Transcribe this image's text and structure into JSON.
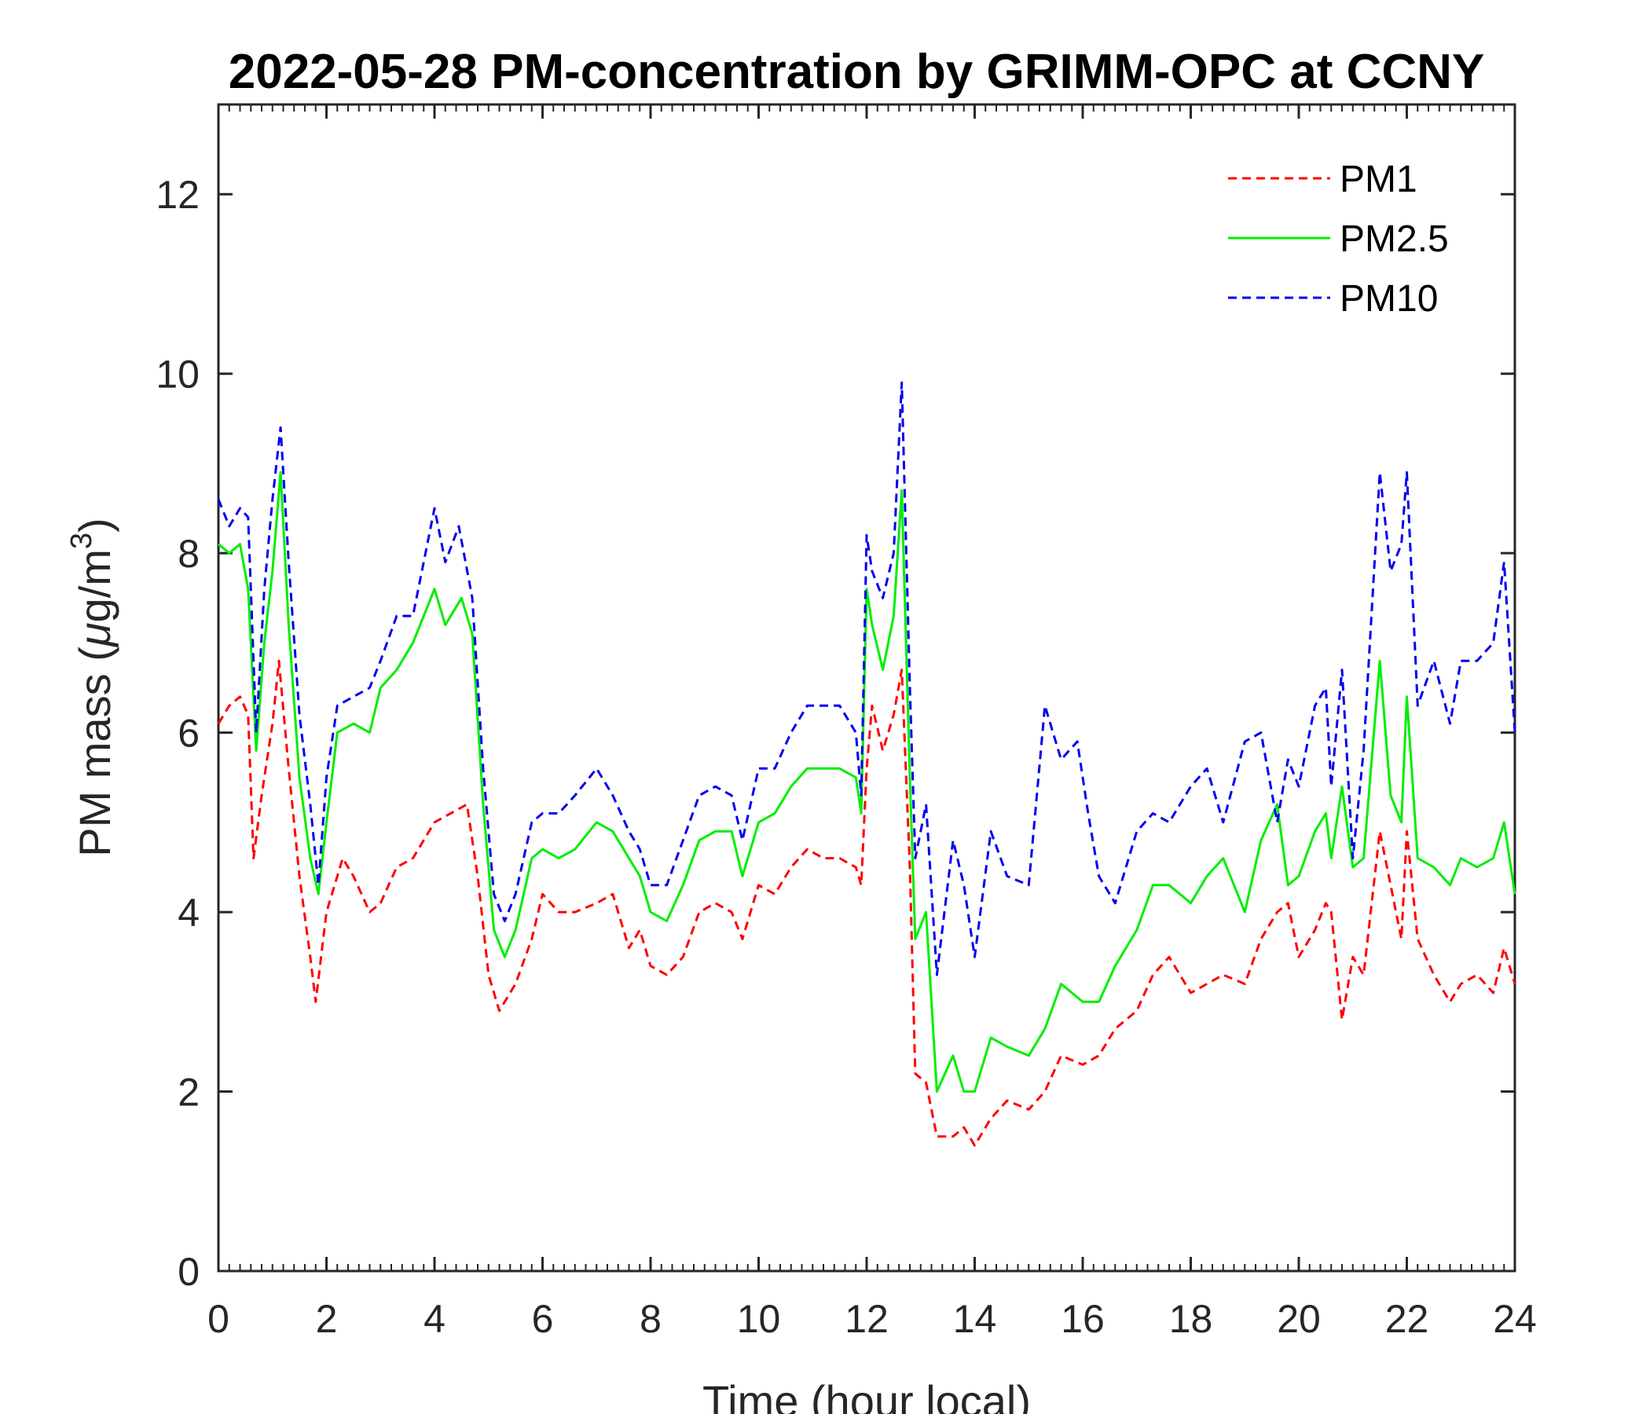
{
  "chart_data": {
    "type": "line",
    "title": "2022-05-28 PM-concentration by GRIMM-OPC at CCNY",
    "xlabel": "Time (hour local)",
    "ylabel_prefix": "PM mass (",
    "ylabel_mu": "μ",
    "ylabel_unit": "g/m",
    "ylabel_exp": "3",
    "ylabel_suffix": ")",
    "xlim": [
      0,
      24
    ],
    "ylim": [
      0,
      13
    ],
    "xticks": [
      0,
      2,
      4,
      6,
      8,
      10,
      12,
      14,
      16,
      18,
      20,
      22,
      24
    ],
    "yticks": [
      0,
      2,
      4,
      6,
      8,
      10,
      12
    ],
    "grid": false,
    "legend_position": "top-right",
    "series": [
      {
        "name": "PM1",
        "color": "#ff0000",
        "style": "dashed",
        "x": [
          0,
          0.2,
          0.4,
          0.55,
          0.65,
          0.8,
          1.0,
          1.12,
          1.3,
          1.5,
          1.7,
          1.8,
          2.0,
          2.2,
          2.3,
          2.5,
          2.8,
          3.0,
          3.3,
          3.6,
          4.0,
          4.3,
          4.6,
          4.8,
          5.0,
          5.2,
          5.5,
          5.8,
          6.0,
          6.3,
          6.6,
          7.0,
          7.3,
          7.6,
          7.8,
          8.0,
          8.3,
          8.6,
          8.9,
          9.2,
          9.5,
          9.7,
          10.0,
          10.3,
          10.6,
          10.9,
          11.2,
          11.5,
          11.8,
          11.9,
          12.0,
          12.1,
          12.3,
          12.5,
          12.65,
          12.8,
          12.9,
          13.1,
          13.3,
          13.6,
          13.8,
          14.0,
          14.3,
          14.6,
          15.0,
          15.3,
          15.6,
          16.0,
          16.3,
          16.6,
          17.0,
          17.3,
          17.6,
          18.0,
          18.3,
          18.6,
          19.0,
          19.3,
          19.6,
          19.8,
          20.0,
          20.3,
          20.5,
          20.6,
          20.8,
          21.0,
          21.2,
          21.5,
          21.7,
          21.9,
          22.0,
          22.2,
          22.5,
          22.8,
          23.0,
          23.3,
          23.6,
          23.8,
          24.0
        ],
        "y": [
          6.1,
          6.3,
          6.4,
          6.2,
          4.6,
          5.3,
          6.1,
          6.8,
          5.6,
          4.4,
          3.5,
          3.0,
          4.0,
          4.4,
          4.6,
          4.4,
          4.0,
          4.1,
          4.5,
          4.6,
          5.0,
          5.1,
          5.2,
          4.4,
          3.3,
          2.9,
          3.2,
          3.7,
          4.2,
          4.0,
          4.0,
          4.1,
          4.2,
          3.6,
          3.8,
          3.4,
          3.3,
          3.5,
          4.0,
          4.1,
          4.0,
          3.7,
          4.3,
          4.2,
          4.5,
          4.7,
          4.6,
          4.6,
          4.5,
          4.3,
          5.6,
          6.3,
          5.8,
          6.2,
          6.7,
          4.5,
          2.2,
          2.1,
          1.5,
          1.5,
          1.6,
          1.4,
          1.7,
          1.9,
          1.8,
          2.0,
          2.4,
          2.3,
          2.4,
          2.7,
          2.9,
          3.3,
          3.5,
          3.1,
          3.2,
          3.3,
          3.2,
          3.7,
          4.0,
          4.1,
          3.5,
          3.8,
          4.1,
          4.0,
          2.8,
          3.5,
          3.3,
          4.9,
          4.3,
          3.7,
          4.9,
          3.7,
          3.3,
          3.0,
          3.2,
          3.3,
          3.1,
          3.6,
          3.2
        ]
      },
      {
        "name": "PM2.5",
        "color": "#00ee00",
        "style": "solid",
        "x": [
          0,
          0.2,
          0.4,
          0.55,
          0.7,
          0.85,
          1.0,
          1.15,
          1.3,
          1.5,
          1.7,
          1.85,
          2.0,
          2.2,
          2.5,
          2.8,
          3.0,
          3.3,
          3.6,
          4.0,
          4.2,
          4.5,
          4.7,
          4.9,
          5.1,
          5.3,
          5.5,
          5.8,
          6.0,
          6.3,
          6.6,
          7.0,
          7.3,
          7.6,
          7.8,
          8.0,
          8.3,
          8.6,
          8.9,
          9.2,
          9.5,
          9.7,
          10.0,
          10.3,
          10.6,
          10.9,
          11.2,
          11.5,
          11.8,
          11.9,
          12.0,
          12.1,
          12.3,
          12.5,
          12.65,
          12.8,
          12.9,
          13.1,
          13.3,
          13.6,
          13.8,
          14.0,
          14.3,
          14.6,
          15.0,
          15.3,
          15.6,
          16.0,
          16.3,
          16.6,
          17.0,
          17.3,
          17.6,
          18.0,
          18.3,
          18.6,
          19.0,
          19.3,
          19.6,
          19.8,
          20.0,
          20.3,
          20.5,
          20.6,
          20.8,
          21.0,
          21.2,
          21.5,
          21.7,
          21.9,
          22.0,
          22.2,
          22.5,
          22.8,
          23.0,
          23.3,
          23.6,
          23.8,
          24.0
        ],
        "y": [
          8.1,
          8.0,
          8.1,
          7.6,
          5.8,
          7.0,
          7.8,
          8.9,
          7.2,
          5.5,
          4.6,
          4.2,
          5.0,
          6.0,
          6.1,
          6.0,
          6.5,
          6.7,
          7.0,
          7.6,
          7.2,
          7.5,
          7.1,
          5.2,
          3.8,
          3.5,
          3.8,
          4.6,
          4.7,
          4.6,
          4.7,
          5.0,
          4.9,
          4.6,
          4.4,
          4.0,
          3.9,
          4.3,
          4.8,
          4.9,
          4.9,
          4.4,
          5.0,
          5.1,
          5.4,
          5.6,
          5.6,
          5.6,
          5.5,
          5.1,
          7.6,
          7.2,
          6.7,
          7.3,
          8.7,
          5.5,
          3.7,
          4.0,
          2.0,
          2.4,
          2.0,
          2.0,
          2.6,
          2.5,
          2.4,
          2.7,
          3.2,
          3.0,
          3.0,
          3.4,
          3.8,
          4.3,
          4.3,
          4.1,
          4.4,
          4.6,
          4.0,
          4.8,
          5.2,
          4.3,
          4.4,
          4.9,
          5.1,
          4.6,
          5.4,
          4.5,
          4.6,
          6.8,
          5.3,
          5.0,
          6.4,
          4.6,
          4.5,
          4.3,
          4.6,
          4.5,
          4.6,
          5.0,
          4.2
        ]
      },
      {
        "name": "PM10",
        "color": "#0000ee",
        "style": "dashed",
        "x": [
          0,
          0.2,
          0.4,
          0.55,
          0.7,
          0.85,
          1.0,
          1.15,
          1.3,
          1.5,
          1.7,
          1.85,
          2.0,
          2.2,
          2.5,
          2.8,
          3.0,
          3.3,
          3.6,
          4.0,
          4.2,
          4.45,
          4.7,
          4.9,
          5.1,
          5.3,
          5.5,
          5.8,
          6.0,
          6.3,
          6.6,
          7.0,
          7.3,
          7.6,
          7.8,
          8.0,
          8.3,
          8.6,
          8.9,
          9.2,
          9.5,
          9.7,
          10.0,
          10.3,
          10.6,
          10.9,
          11.2,
          11.5,
          11.8,
          11.9,
          12.0,
          12.1,
          12.3,
          12.5,
          12.65,
          12.8,
          12.9,
          13.1,
          13.3,
          13.6,
          13.8,
          14.0,
          14.3,
          14.6,
          15.0,
          15.3,
          15.6,
          15.9,
          16.1,
          16.3,
          16.6,
          17.0,
          17.3,
          17.6,
          18.0,
          18.3,
          18.6,
          19.0,
          19.3,
          19.6,
          19.8,
          20.0,
          20.3,
          20.5,
          20.6,
          20.8,
          21.0,
          21.2,
          21.5,
          21.7,
          21.9,
          22.0,
          22.2,
          22.5,
          22.8,
          23.0,
          23.3,
          23.6,
          23.8,
          24.0
        ],
        "y": [
          8.6,
          8.3,
          8.5,
          8.4,
          6.0,
          7.6,
          8.6,
          9.4,
          7.9,
          6.2,
          5.2,
          4.3,
          5.5,
          6.3,
          6.4,
          6.5,
          6.8,
          7.3,
          7.3,
          8.5,
          7.9,
          8.3,
          7.5,
          5.6,
          4.2,
          3.9,
          4.2,
          5.0,
          5.1,
          5.1,
          5.3,
          5.6,
          5.3,
          4.9,
          4.7,
          4.3,
          4.3,
          4.8,
          5.3,
          5.4,
          5.3,
          4.8,
          5.6,
          5.6,
          6.0,
          6.3,
          6.3,
          6.3,
          6.0,
          5.3,
          8.2,
          7.8,
          7.5,
          8.0,
          9.9,
          6.5,
          4.6,
          5.2,
          3.3,
          4.8,
          4.3,
          3.5,
          4.9,
          4.4,
          4.3,
          6.3,
          5.7,
          5.9,
          5.1,
          4.4,
          4.1,
          4.9,
          5.1,
          5.0,
          5.4,
          5.6,
          5.0,
          5.9,
          6.0,
          5.0,
          5.7,
          5.4,
          6.3,
          6.5,
          5.4,
          6.7,
          4.6,
          5.8,
          8.9,
          7.8,
          8.1,
          8.9,
          6.3,
          6.8,
          6.1,
          6.8,
          6.8,
          7.0,
          7.9,
          6.0
        ]
      }
    ]
  }
}
